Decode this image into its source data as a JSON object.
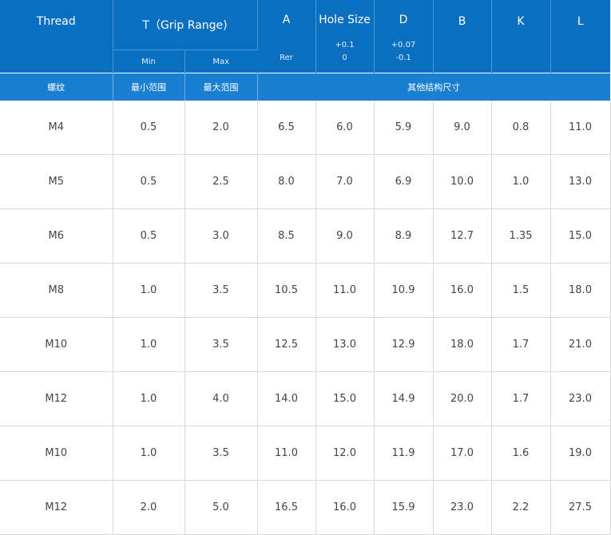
{
  "header": {
    "thread": "Thread",
    "grip_range": "T（Grip Range)",
    "min": "Min",
    "max": "Max",
    "a": "A",
    "a_sub": "Rer",
    "hole_size": "Hole Size",
    "hole_tol_upper": "+0.1",
    "hole_tol_lower": "0",
    "d": "D",
    "d_tol_upper": "+0.07",
    "d_tol_lower": "-0.1",
    "b": "B",
    "k": "K",
    "l": "L"
  },
  "cn_header": {
    "thread": "螺纹",
    "min_range": "最小范围",
    "max_range": "最大范围",
    "other_dims": "其他结构尺寸"
  },
  "rows": [
    [
      "M4",
      "0.5",
      "2.0",
      "6.5",
      "6.0",
      "5.9",
      "9.0",
      "0.8",
      "11.0"
    ],
    [
      "M5",
      "0.5",
      "2.5",
      "8.0",
      "7.0",
      "6.9",
      "10.0",
      "1.0",
      "13.0"
    ],
    [
      "M6",
      "0.5",
      "3.0",
      "8.5",
      "9.0",
      "8.9",
      "12.7",
      "1.35",
      "15.0"
    ],
    [
      "M8",
      "1.0",
      "3.5",
      "10.5",
      "11.0",
      "10.9",
      "16.0",
      "1.5",
      "18.0"
    ],
    [
      "M10",
      "1.0",
      "3.5",
      "12.5",
      "13.0",
      "12.9",
      "18.0",
      "1.7",
      "21.0"
    ],
    [
      "M12",
      "1.0",
      "4.0",
      "14.0",
      "15.0",
      "14.9",
      "20.0",
      "1.7",
      "23.0"
    ],
    [
      "M10",
      "1.0",
      "3.5",
      "11.0",
      "12.0",
      "11.9",
      "17.0",
      "1.6",
      "19.0"
    ],
    [
      "M12",
      "2.0",
      "5.0",
      "16.5",
      "16.0",
      "15.9",
      "23.0",
      "2.2",
      "27.5"
    ]
  ],
  "colors": {
    "header_bg": "#0a6fc0",
    "cn_row_bg": "#1a7fd0",
    "body_text": "#444444",
    "grid_line": "#d8d8d8"
  }
}
